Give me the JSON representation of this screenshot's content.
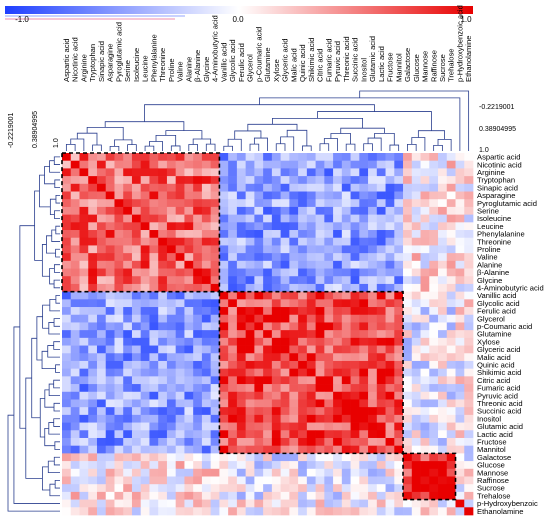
{
  "chart_data": {
    "type": "heatmap",
    "title": "",
    "color_scale": {
      "min_label": "-1.0",
      "mid_label": "0.0",
      "max_label": "1.0",
      "min_color": "#1f3fff",
      "mid_color": "#ffffff",
      "max_color": "#e80000"
    },
    "dendrogram_scale_labels": [
      "-0.2219001",
      "0.38904995",
      "1.0"
    ],
    "metabolites": [
      "Aspartic acid",
      "Nicotinic acid",
      "Arginine",
      "Tryptophan",
      "Sinapic acid",
      "Asparagine",
      "Pyroglutamic acid",
      "Serine",
      "Isoleucine",
      "Leucine",
      "Phenylalanine",
      "Threonine",
      "Proline",
      "Valine",
      "Alanine",
      "β-Alanine",
      "Glycine",
      "4-Aminobutyric acid",
      "Vanillic acid",
      "Glycolic acid",
      "Ferulic acid",
      "Glycerol",
      "p-Coumaric acid",
      "Glutamine",
      "Xylose",
      "Glyceric acid",
      "Malic acid",
      "Quinic acid",
      "Shikimic acid",
      "Citric acid",
      "Fumaric acid",
      "Pyruvic acid",
      "Threonic acid",
      "Succinic acid",
      "Inositol",
      "Glutamic acid",
      "Lactic acid",
      "Fructose",
      "Mannitol",
      "Galactose",
      "Glucose",
      "Mannose",
      "Raffinose",
      "Sucrose",
      "Trehalose",
      "p-Hydroxybenzoic acid",
      "Ethanolamine"
    ],
    "row_labels": [
      "Aspartic acid",
      "Nicotinic acid",
      "Arginine",
      "Tryptophan",
      "Sinapic acid",
      "Asparagine",
      "Pyroglutamic acid",
      "Serine",
      "Isoleucine",
      "Leucine",
      "Phenylalanine",
      "Threonine",
      "Proline",
      "Valine",
      "Alanine",
      "β-Alanine",
      "Glycine",
      "4-Aminobutyric acid",
      "Vanillic acid",
      "Glycolic acid",
      "Ferulic acid",
      "Glycerol",
      "p-Coumaric acid",
      "Glutamine",
      "Xylose",
      "Glyceric acid",
      "Malic acid",
      "Quinic acid",
      "Shikimic acid",
      "Citric acid",
      "Fumaric acid",
      "Pyruvic acid",
      "Threonic acid",
      "Succinic acid",
      "Inositol",
      "Glutamic acid",
      "Lactic acid",
      "Fructose",
      "Mannitol",
      "Galactose",
      "Glucose",
      "Mannose",
      "Raffinose",
      "Sucrose",
      "Trehalose",
      "p-Hydroxybenzoic",
      "Ethanolamine"
    ],
    "cluster_groups": [
      {
        "start": 0,
        "end": 17,
        "within": 0.6,
        "to_group2": -0.5,
        "to_group3": 0.05
      },
      {
        "start": 18,
        "end": 38,
        "within": 0.75,
        "to_group3": -0.1
      },
      {
        "start": 39,
        "end": 44,
        "within": 0.8
      }
    ],
    "value_range": [
      -1.0,
      1.0
    ]
  }
}
